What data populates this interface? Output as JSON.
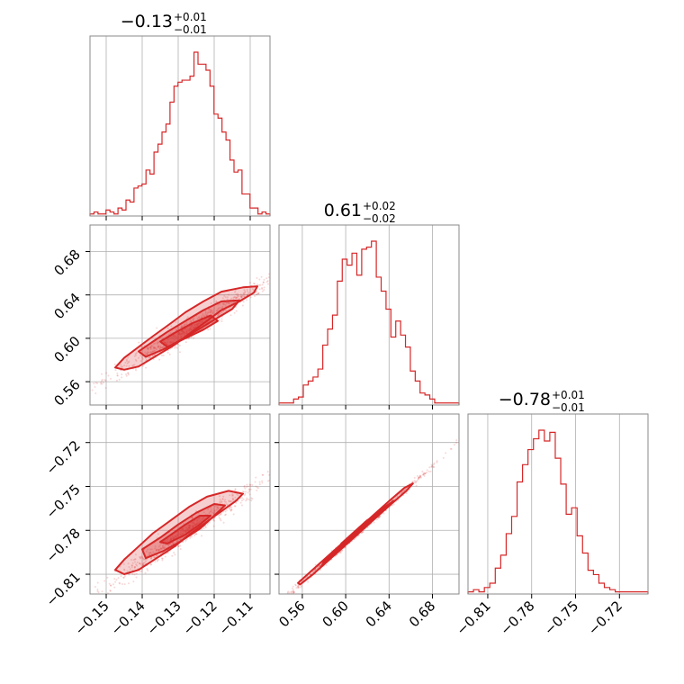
{
  "colors": {
    "series": "#d62728",
    "frame": "#888888",
    "grid": "#b0b0b0"
  },
  "chart_data": {
    "type": "corner",
    "grid": true,
    "parameters": [
      {
        "median": -0.13,
        "title": {
          "main": "−0.13",
          "plus": "+0.01",
          "minus": "−0.01"
        },
        "range": [
          -0.1545,
          -0.1045
        ],
        "ticks": [
          -0.15,
          -0.14,
          -0.13,
          -0.12,
          -0.11
        ],
        "ticklabels": [
          "−0.15",
          "−0.14",
          "−0.13",
          "−0.12",
          "−0.11"
        ],
        "histogram": [
          1,
          2,
          1,
          1,
          3,
          2,
          1,
          4,
          3,
          8,
          7,
          14,
          15,
          16,
          23,
          21,
          32,
          36,
          42,
          46,
          57,
          65,
          67,
          68,
          68,
          70,
          82,
          76,
          76,
          73,
          65,
          51,
          49,
          42,
          38,
          28,
          22,
          23,
          11,
          11,
          4,
          4,
          1,
          2,
          1
        ]
      },
      {
        "median": 0.61,
        "title": {
          "main": "0.61",
          "plus": "+0.02",
          "minus": "−0.02"
        },
        "range": [
          0.5385,
          0.7045
        ],
        "ticks": [
          0.56,
          0.6,
          0.64,
          0.68
        ],
        "ticklabels": [
          "0.56",
          "0.60",
          "0.64",
          "0.68"
        ],
        "histogram": [
          1,
          1,
          1,
          3,
          4,
          10,
          12,
          14,
          18,
          30,
          38,
          45,
          62,
          73,
          70,
          76,
          65,
          78,
          79,
          82,
          64,
          57,
          48,
          34,
          42,
          35,
          29,
          17,
          12,
          6,
          5,
          3,
          1,
          1,
          1,
          1,
          1
        ]
      },
      {
        "median": -0.78,
        "title": {
          "main": "−0.78",
          "plus": "+0.01",
          "minus": "−0.01"
        },
        "range": [
          -0.8235,
          -0.7005
        ],
        "ticks": [
          -0.81,
          -0.78,
          -0.75,
          -0.72
        ],
        "ticklabels": [
          "−0.81",
          "−0.78",
          "−0.75",
          "−0.72"
        ],
        "histogram": [
          1,
          2,
          1,
          3,
          5,
          12,
          18,
          28,
          36,
          52,
          60,
          67,
          72,
          76,
          71,
          75,
          63,
          51,
          37,
          40,
          27,
          19,
          11,
          9,
          5,
          3,
          2,
          1,
          1,
          1,
          1,
          1,
          1
        ]
      }
    ],
    "pairs": [
      {
        "x": 0,
        "y": 1,
        "contours": [
          [
            [
              -0.145,
              0.571
            ],
            [
              -0.141,
              0.574
            ],
            [
              -0.136,
              0.584
            ],
            [
              -0.131,
              0.594
            ],
            [
              -0.127,
              0.604
            ],
            [
              -0.122,
              0.616
            ],
            [
              -0.118,
              0.626
            ],
            [
              -0.113,
              0.634
            ],
            [
              -0.109,
              0.642
            ],
            [
              -0.108,
              0.648
            ],
            [
              -0.112,
              0.647
            ],
            [
              -0.118,
              0.643
            ],
            [
              -0.123,
              0.634
            ],
            [
              -0.128,
              0.624
            ],
            [
              -0.132,
              0.614
            ],
            [
              -0.137,
              0.602
            ],
            [
              -0.141,
              0.592
            ],
            [
              -0.145,
              0.582
            ],
            [
              -0.1475,
              0.573
            ]
          ],
          [
            [
              -0.139,
              0.583
            ],
            [
              -0.134,
              0.59
            ],
            [
              -0.129,
              0.599
            ],
            [
              -0.124,
              0.609
            ],
            [
              -0.119,
              0.619
            ],
            [
              -0.115,
              0.627
            ],
            [
              -0.113,
              0.635
            ],
            [
              -0.118,
              0.634
            ],
            [
              -0.123,
              0.626
            ],
            [
              -0.128,
              0.616
            ],
            [
              -0.133,
              0.606
            ],
            [
              -0.137,
              0.597
            ],
            [
              -0.141,
              0.588
            ]
          ],
          [
            [
              -0.133,
              0.592
            ],
            [
              -0.128,
              0.6
            ],
            [
              -0.123,
              0.608
            ],
            [
              -0.119,
              0.616
            ],
            [
              -0.121,
              0.621
            ],
            [
              -0.126,
              0.614
            ],
            [
              -0.131,
              0.605
            ],
            [
              -0.135,
              0.597
            ]
          ]
        ]
      },
      {
        "x": 0,
        "y": 2,
        "contours": [
          [
            [
              -0.145,
              -0.81
            ],
            [
              -0.141,
              -0.807
            ],
            [
              -0.136,
              -0.799
            ],
            [
              -0.131,
              -0.791
            ],
            [
              -0.127,
              -0.783
            ],
            [
              -0.122,
              -0.774
            ],
            [
              -0.118,
              -0.767
            ],
            [
              -0.114,
              -0.76
            ],
            [
              -0.112,
              -0.755
            ],
            [
              -0.116,
              -0.753
            ],
            [
              -0.122,
              -0.757
            ],
            [
              -0.127,
              -0.764
            ],
            [
              -0.132,
              -0.773
            ],
            [
              -0.137,
              -0.782
            ],
            [
              -0.141,
              -0.791
            ],
            [
              -0.145,
              -0.8
            ],
            [
              -0.1475,
              -0.807
            ]
          ],
          [
            [
              -0.139,
              -0.799
            ],
            [
              -0.134,
              -0.794
            ],
            [
              -0.129,
              -0.787
            ],
            [
              -0.124,
              -0.779
            ],
            [
              -0.12,
              -0.77
            ],
            [
              -0.117,
              -0.763
            ],
            [
              -0.12,
              -0.762
            ],
            [
              -0.125,
              -0.768
            ],
            [
              -0.13,
              -0.776
            ],
            [
              -0.135,
              -0.785
            ],
            [
              -0.14,
              -0.793
            ]
          ],
          [
            [
              -0.133,
              -0.789
            ],
            [
              -0.128,
              -0.783
            ],
            [
              -0.124,
              -0.776
            ],
            [
              -0.121,
              -0.77
            ],
            [
              -0.124,
              -0.77
            ],
            [
              -0.128,
              -0.776
            ],
            [
              -0.132,
              -0.783
            ],
            [
              -0.135,
              -0.788
            ]
          ]
        ]
      },
      {
        "x": 1,
        "y": 2,
        "contours": [
          [
            [
              0.558,
              -0.817
            ],
            [
              0.57,
              -0.81
            ],
            [
              0.582,
              -0.802
            ],
            [
              0.594,
              -0.794
            ],
            [
              0.606,
              -0.786
            ],
            [
              0.618,
              -0.778
            ],
            [
              0.63,
              -0.77
            ],
            [
              0.642,
              -0.762
            ],
            [
              0.656,
              -0.753
            ],
            [
              0.662,
              -0.748
            ],
            [
              0.654,
              -0.751
            ],
            [
              0.64,
              -0.76
            ],
            [
              0.628,
              -0.768
            ],
            [
              0.616,
              -0.776
            ],
            [
              0.604,
              -0.784
            ],
            [
              0.592,
              -0.792
            ],
            [
              0.58,
              -0.8
            ],
            [
              0.568,
              -0.808
            ],
            [
              0.556,
              -0.816
            ]
          ],
          [
            [
              0.578,
              -0.804
            ],
            [
              0.592,
              -0.794
            ],
            [
              0.606,
              -0.785
            ],
            [
              0.62,
              -0.776
            ],
            [
              0.634,
              -0.766
            ],
            [
              0.644,
              -0.76
            ],
            [
              0.636,
              -0.764
            ],
            [
              0.622,
              -0.773
            ],
            [
              0.608,
              -0.782
            ],
            [
              0.594,
              -0.791
            ],
            [
              0.58,
              -0.801
            ]
          ],
          [
            [
              0.594,
              -0.792
            ],
            [
              0.606,
              -0.784
            ],
            [
              0.618,
              -0.776
            ],
            [
              0.628,
              -0.77
            ],
            [
              0.62,
              -0.773
            ],
            [
              0.608,
              -0.781
            ],
            [
              0.596,
              -0.789
            ]
          ]
        ]
      }
    ]
  }
}
